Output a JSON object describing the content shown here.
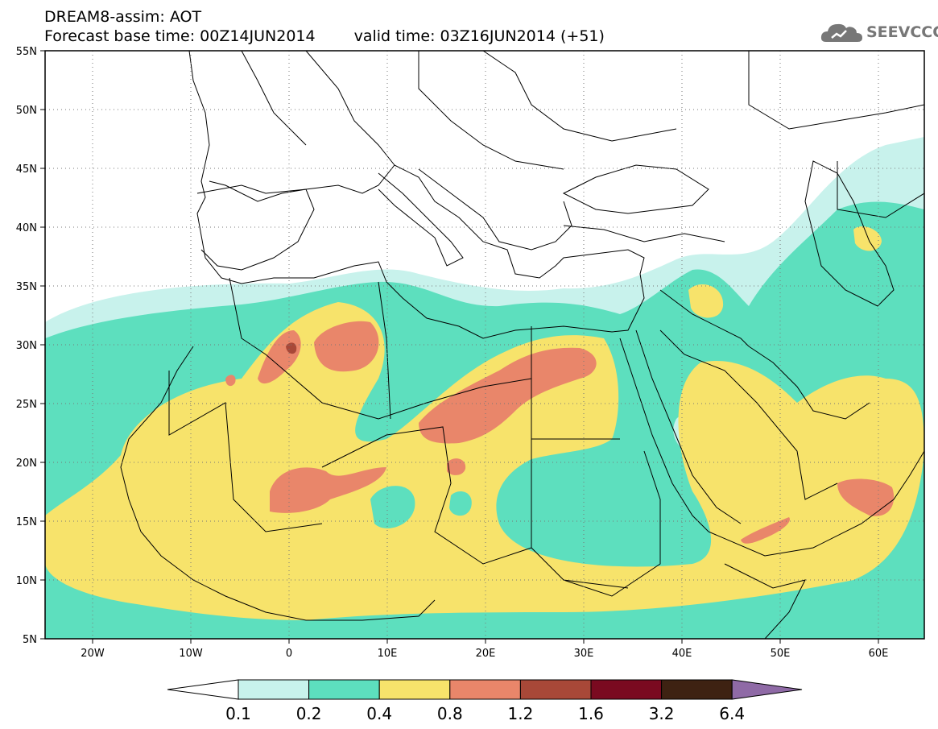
{
  "title": {
    "line1": "DREAM8-assim: AOT",
    "base_time": "Forecast base time: 00Z14JUN2014",
    "valid_time": "valid time: 03Z16JUN2014 (+51)"
  },
  "logo": {
    "text": "SEEVCCC",
    "icon": "cloud-icon"
  },
  "map": {
    "lat_labels": [
      "55N",
      "50N",
      "45N",
      "40N",
      "35N",
      "30N",
      "25N",
      "20N",
      "15N",
      "10N",
      "5N"
    ],
    "lon_labels": [
      "20W",
      "10W",
      "0",
      "10E",
      "20E",
      "30E",
      "40E",
      "50E",
      "60E"
    ]
  },
  "colorbar": {
    "levels": [
      "0.1",
      "0.2",
      "0.4",
      "0.8",
      "1.2",
      "1.6",
      "3.2",
      "6.4"
    ],
    "colors": [
      "#ffffff",
      "#c8f2ec",
      "#5ddfbe",
      "#f7e36b",
      "#e9866a",
      "#a84838",
      "#7a0a20",
      "#3e2212",
      "#8f6aa6"
    ]
  },
  "fill_colors": {
    "l1": "#c8f2ec",
    "l2": "#5ddfbe",
    "l3": "#f7e36b",
    "l4": "#e9866a",
    "l5": "#a84838"
  }
}
